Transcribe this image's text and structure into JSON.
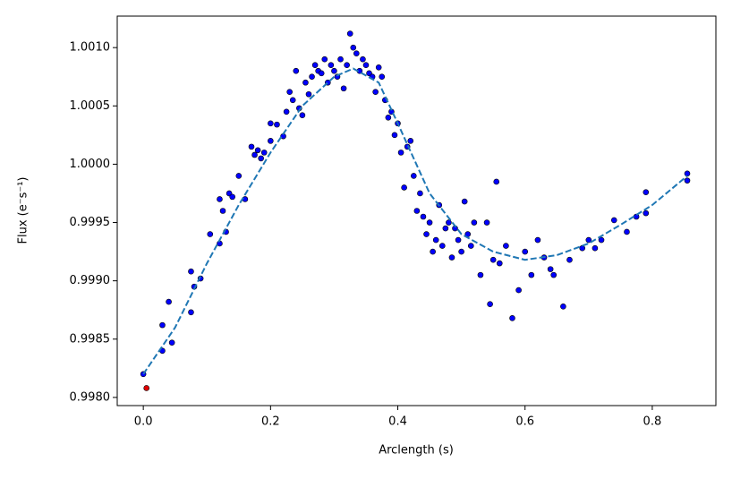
{
  "chart_data": {
    "type": "scatter",
    "xlabel": "Arclength (s)",
    "ylabel": "Flux (e⁻s⁻¹)",
    "xlim": [
      -0.041,
      0.9
    ],
    "ylim": [
      0.99793,
      1.00127
    ],
    "xticks": [
      {
        "value": 0.0,
        "label": "0.0"
      },
      0.2,
      0.4,
      0.6,
      0.8
    ],
    "yticks": [
      {
        "value": 0.998,
        "label": "0.9980"
      },
      {
        "value": 0.9985,
        "label": "0.9985"
      },
      {
        "value": 0.999,
        "label": "0.9990"
      },
      {
        "value": 0.9995,
        "label": "0.9995"
      },
      {
        "value": 1.0,
        "label": "1.0000"
      },
      {
        "value": 1.0005,
        "label": "1.0005"
      },
      {
        "value": 1.001,
        "label": "1.0010"
      }
    ],
    "series": [
      {
        "type": "scatter",
        "color": "#0000ff",
        "x": [
          0.0,
          0.03,
          0.03,
          0.04,
          0.045,
          0.075,
          0.075,
          0.08,
          0.09,
          0.105,
          0.12,
          0.12,
          0.125,
          0.13,
          0.135,
          0.14,
          0.15,
          0.16,
          0.17,
          0.175,
          0.18,
          0.185,
          0.19,
          0.2,
          0.2,
          0.21,
          0.22,
          0.225,
          0.23,
          0.235,
          0.24,
          0.245,
          0.25,
          0.255,
          0.26,
          0.265,
          0.27,
          0.275,
          0.28,
          0.285,
          0.29,
          0.295,
          0.3,
          0.305,
          0.31,
          0.315,
          0.32,
          0.325,
          0.33,
          0.335,
          0.34,
          0.345,
          0.35,
          0.355,
          0.36,
          0.365,
          0.37,
          0.375,
          0.38,
          0.385,
          0.39,
          0.395,
          0.4,
          0.405,
          0.41,
          0.415,
          0.42,
          0.425,
          0.43,
          0.435,
          0.44,
          0.445,
          0.45,
          0.455,
          0.46,
          0.465,
          0.47,
          0.475,
          0.48,
          0.485,
          0.49,
          0.495,
          0.5,
          0.505,
          0.51,
          0.515,
          0.52,
          0.53,
          0.54,
          0.545,
          0.55,
          0.555,
          0.56,
          0.57,
          0.58,
          0.59,
          0.6,
          0.61,
          0.62,
          0.63,
          0.64,
          0.645,
          0.66,
          0.67,
          0.69,
          0.7,
          0.71,
          0.72,
          0.74,
          0.76,
          0.775,
          0.79,
          0.79,
          0.855,
          0.855
        ],
        "values": [
          0.9982,
          0.99862,
          0.9984,
          0.99882,
          0.99847,
          0.99908,
          0.99873,
          0.99895,
          0.99902,
          0.9994,
          0.99932,
          0.9997,
          0.9996,
          0.99942,
          0.99975,
          0.99972,
          0.9999,
          0.9997,
          1.00015,
          1.00008,
          1.00012,
          1.00005,
          1.0001,
          1.00035,
          1.0002,
          1.00034,
          1.00024,
          1.00045,
          1.00062,
          1.00055,
          1.0008,
          1.00048,
          1.00042,
          1.0007,
          1.0006,
          1.00075,
          1.00085,
          1.0008,
          1.00078,
          1.0009,
          1.0007,
          1.00085,
          1.0008,
          1.00075,
          1.0009,
          1.00065,
          1.00085,
          1.00112,
          1.001,
          1.00095,
          1.0008,
          1.0009,
          1.00085,
          1.00078,
          1.00075,
          1.00062,
          1.00083,
          1.00075,
          1.00055,
          1.0004,
          1.00045,
          1.00025,
          1.00035,
          1.0001,
          0.9998,
          1.00015,
          1.0002,
          0.9999,
          0.9996,
          0.99975,
          0.99955,
          0.9994,
          0.9995,
          0.99925,
          0.99935,
          0.99965,
          0.9993,
          0.99945,
          0.9995,
          0.9992,
          0.99945,
          0.99935,
          0.99925,
          0.99968,
          0.9994,
          0.9993,
          0.9995,
          0.99905,
          0.9995,
          0.9988,
          0.99918,
          0.99985,
          0.99915,
          0.9993,
          0.99868,
          0.99892,
          0.99925,
          0.99905,
          0.99935,
          0.9992,
          0.9991,
          0.99905,
          0.99878,
          0.99918,
          0.99928,
          0.99935,
          0.99928,
          0.99935,
          0.99952,
          0.99942,
          0.99955,
          0.99976,
          0.99958,
          0.99992,
          0.99986
        ]
      },
      {
        "type": "scatter",
        "color": "#e00000",
        "x": [
          0.005
        ],
        "values": [
          0.99808
        ]
      },
      {
        "type": "line",
        "color": "#1f77b4",
        "dashed": true,
        "x": [
          0,
          0.05,
          0.1,
          0.15,
          0.2,
          0.25,
          0.3,
          0.33,
          0.37,
          0.4,
          0.45,
          0.5,
          0.55,
          0.6,
          0.65,
          0.7,
          0.75,
          0.8,
          0.855
        ],
        "values": [
          0.9982,
          0.9986,
          0.99915,
          0.99965,
          1.0001,
          1.0005,
          1.00075,
          1.00082,
          1.0007,
          1.00035,
          0.99975,
          0.9994,
          0.99925,
          0.99918,
          0.99922,
          0.99932,
          0.99948,
          0.99965,
          0.9999
        ]
      }
    ]
  }
}
